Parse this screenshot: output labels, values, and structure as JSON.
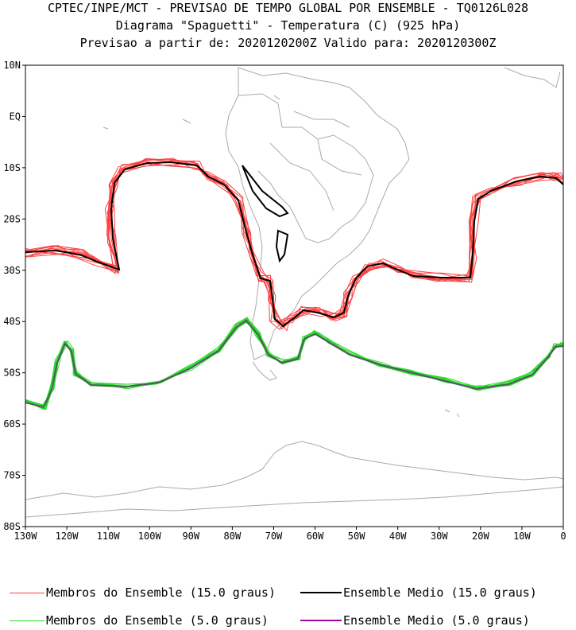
{
  "header": {
    "line1": "CPTEC/INPE/MCT - PREVISAO DE TEMPO GLOBAL POR ENSEMBLE - TQ0126L028",
    "line2": "Diagrama \"Spaguetti\" - Temperatura (C) (925 hPa)",
    "line3": "Previsao a partir de: 2020120200Z  Valido para: 2020120300Z"
  },
  "map": {
    "lat_labels": [
      "10N",
      "EQ",
      "10S",
      "20S",
      "30S",
      "40S",
      "50S",
      "60S",
      "70S",
      "80S"
    ],
    "lon_labels": [
      "130W",
      "120W",
      "110W",
      "100W",
      "90W",
      "80W",
      "70W",
      "60W",
      "50W",
      "40W",
      "30W",
      "20W",
      "10W",
      "0"
    ],
    "lon_range": [
      -130,
      0
    ],
    "lat_range": [
      -80,
      10
    ],
    "coastline_color": "#aaaaaa"
  },
  "legend": {
    "members_15": {
      "label": "Membros do Ensemble (15.0 graus)",
      "color": "#ff4040"
    },
    "mean_15": {
      "label": "Ensemble Medio (15.0 graus)",
      "color": "#000000"
    },
    "members_5": {
      "label": "Membros do Ensemble (5.0 graus)",
      "color": "#22dd22"
    },
    "mean_5": {
      "label": "Ensemble Medio (5.0 graus)",
      "color": "#aa00aa"
    }
  }
}
